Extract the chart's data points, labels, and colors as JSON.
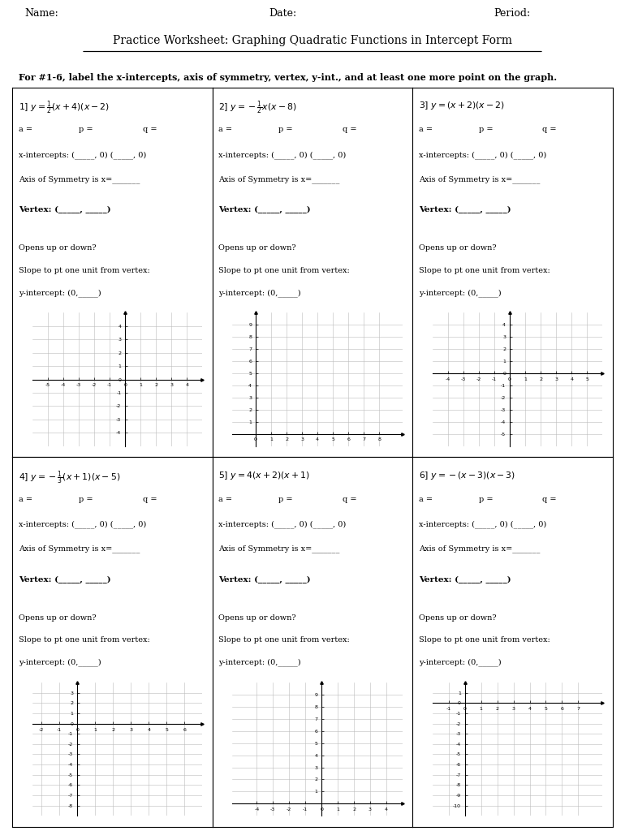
{
  "title": "Practice Worksheet: Graphing Quadratic Functions in Intercept Form",
  "instruction": "For #1-6, label the x-intercepts, axis of symmetry, vertex, y-int., and at least one more point on the graph.",
  "problems": [
    {
      "num": "1",
      "eq_plain": "1] y = ½(x + 4)(x − 2)",
      "eq_parts": [
        "1] y = ",
        "1/2",
        "(x + 4)(x − 2)"
      ],
      "xint": "x-intercepts: (_____, 0) (_____, 0)",
      "axis": "Axis of Symmetry is x=_______",
      "vertex": "Vertex: (_____, _____)",
      "opens": "Opens up or down?",
      "slope": "Slope to pt one unit from vertex:",
      "yint": "y-intercept: (0,_____)",
      "xlim": [
        -6,
        5
      ],
      "ylim": [
        -5,
        5
      ],
      "xticks": [
        -5,
        -4,
        -3,
        -2,
        -1,
        0,
        1,
        2,
        3,
        4
      ],
      "yticks": [
        -4,
        -3,
        -2,
        -1,
        0,
        1,
        2,
        3,
        4
      ]
    },
    {
      "num": "2",
      "eq_plain": "2] y = −½x(x − 8)",
      "eq_parts": [
        "2] y = −",
        "1/2",
        "x(x − 8)"
      ],
      "xint": "x-intercepts: (_____, 0) (_____, 0)",
      "axis": "Axis of Symmetry is x=_______",
      "vertex": "Vertex: (_____, _____)",
      "opens": "Opens up or down?",
      "slope": "Slope to pt one unit from vertex:",
      "yint": "y-intercept: (0,_____)",
      "xlim": [
        -1.5,
        9.5
      ],
      "ylim": [
        -1,
        10
      ],
      "xticks": [
        0,
        1,
        2,
        3,
        4,
        5,
        6,
        7,
        8
      ],
      "yticks": [
        1,
        2,
        3,
        4,
        5,
        6,
        7,
        8,
        9
      ]
    },
    {
      "num": "3",
      "eq_plain": "3] y = (x + 2)(x − 2)",
      "eq_parts": [
        "3] y = (x + 2)(x − 2)",
        "",
        ""
      ],
      "xint": "x-intercepts: (_____, 0) (_____, 0)",
      "axis": "Axis of Symmetry is x=_______",
      "vertex": "Vertex: (_____, _____)",
      "opens": "Opens up or down?",
      "slope": "Slope to pt one unit from vertex:",
      "yint": "y-intercept: (0,_____)",
      "xlim": [
        -5,
        6
      ],
      "ylim": [
        -6,
        5
      ],
      "xticks": [
        -4,
        -3,
        -2,
        -1,
        0,
        1,
        2,
        3,
        4,
        5
      ],
      "yticks": [
        -5,
        -4,
        -3,
        -2,
        -1,
        0,
        1,
        2,
        3,
        4
      ]
    },
    {
      "num": "4",
      "eq_plain": "4] y = −1/3(x + 1)(x − 5)",
      "eq_parts": [
        "4] y = −",
        "1/3",
        "(x + 1)(x − 5)"
      ],
      "xint": "x-intercepts: (_____, 0) (_____, 0)",
      "axis": "Axis of Symmetry is x=_______",
      "vertex": "Vertex: (_____, _____)",
      "opens": "Opens up or down?",
      "slope": "Slope to pt one unit from vertex:",
      "yint": "y-intercept: (0,_____)",
      "xlim": [
        -2.5,
        7
      ],
      "ylim": [
        -9,
        4
      ],
      "xticks": [
        -2,
        -1,
        0,
        1,
        2,
        3,
        4,
        5,
        6
      ],
      "yticks": [
        -8,
        -7,
        -6,
        -5,
        -4,
        -3,
        -2,
        -1,
        0,
        1,
        2,
        3
      ]
    },
    {
      "num": "5",
      "eq_plain": "5] y = 4(x + 2)(x + 1)",
      "eq_parts": [
        "5] y = 4(x + 2)(x + 1)",
        "",
        ""
      ],
      "xint": "x-intercepts: (_____, 0) (_____, 0)",
      "axis": "Axis of Symmetry is x=_______",
      "vertex": "Vertex: (_____, _____)",
      "opens": "Opens up or down?",
      "slope": "Slope to pt one unit from vertex:",
      "yint": "y-intercept: (0,_____)",
      "xlim": [
        -5.5,
        5
      ],
      "ylim": [
        -1,
        10
      ],
      "xticks": [
        -4,
        -3,
        -2,
        -1,
        0,
        1,
        2,
        3,
        4
      ],
      "yticks": [
        1,
        2,
        3,
        4,
        5,
        6,
        7,
        8,
        9
      ]
    },
    {
      "num": "6",
      "eq_plain": "6] y = −(x − 3)(x − 3)",
      "eq_parts": [
        "6] y = −(x − 3)(x − 3)",
        "",
        ""
      ],
      "xint": "x-intercepts: (_____, 0) (_____, 0)",
      "axis": "Axis of Symmetry is x=_______",
      "vertex": "Vertex: (_____, _____)",
      "opens": "Opens up or down?",
      "slope": "Slope to pt one unit from vertex:",
      "yint": "y-intercept: (0,_____)",
      "xlim": [
        -2,
        8.5
      ],
      "ylim": [
        -11,
        2
      ],
      "xticks": [
        -1,
        0,
        1,
        2,
        3,
        4,
        5,
        6,
        7
      ],
      "yticks": [
        -10,
        -9,
        -8,
        -7,
        -6,
        -5,
        -4,
        -3,
        -2,
        -1,
        0,
        1
      ]
    }
  ],
  "bg_color": "#ffffff",
  "text_color": "#000000"
}
